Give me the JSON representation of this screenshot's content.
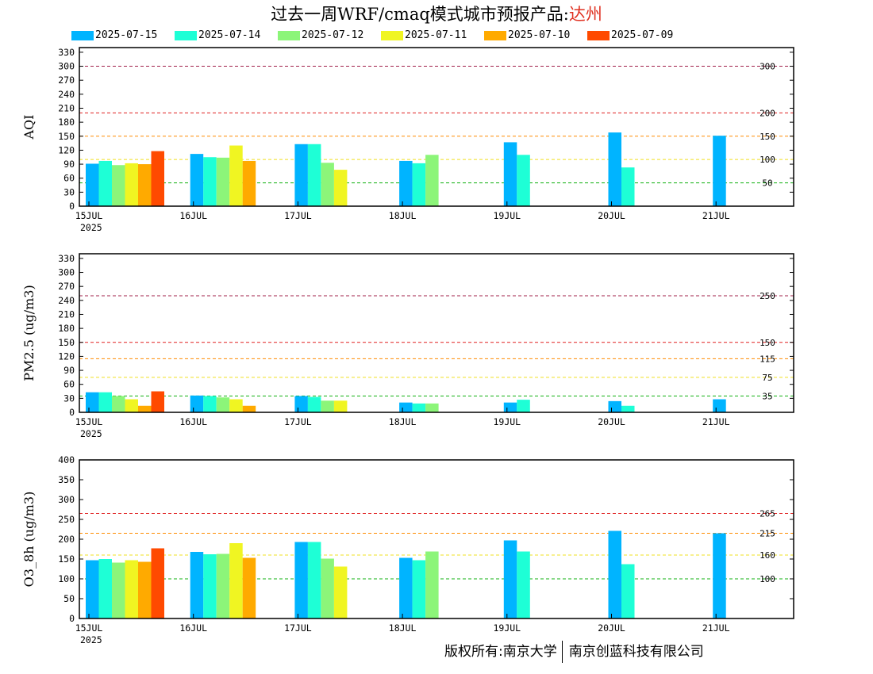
{
  "title": {
    "prefix": "过去一周WRF/cmaq模式城市预报产品:",
    "city": "达州"
  },
  "legend": [
    {
      "label": "2025-07-15",
      "color": "#00b4ff"
    },
    {
      "label": "2025-07-14",
      "color": "#1effd6"
    },
    {
      "label": "2025-07-12",
      "color": "#8cf579"
    },
    {
      "label": "2025-07-11",
      "color": "#f0f522"
    },
    {
      "label": "2025-07-10",
      "color": "#ffaa00"
    },
    {
      "label": "2025-07-09",
      "color": "#ff4a00"
    }
  ],
  "copyright": {
    "left": "版权所有:南京大学",
    "right": "南京创蓝科技有限公司"
  },
  "chart_data": [
    {
      "type": "bar",
      "ylabel": "AQI",
      "ylim": [
        0,
        340
      ],
      "yticks": [
        0,
        30,
        60,
        90,
        120,
        150,
        180,
        210,
        240,
        270,
        300,
        330
      ],
      "xticks": [
        "15JUL",
        "16JUL",
        "17JUL",
        "18JUL",
        "19JUL",
        "20JUL",
        "21JUL"
      ],
      "year": "2025",
      "thresholds": [
        {
          "value": 300,
          "label": "300",
          "color": "#a0204a"
        },
        {
          "value": 200,
          "label": "200",
          "color": "#e02020"
        },
        {
          "value": 150,
          "label": "150",
          "color": "#ff8c00"
        },
        {
          "value": 100,
          "label": "100",
          "color": "#f0e020"
        },
        {
          "value": 50,
          "label": "50",
          "color": "#10b010"
        }
      ],
      "days": [
        [
          91,
          97,
          88,
          92,
          90,
          118
        ],
        [
          112,
          105,
          104,
          130,
          97,
          null
        ],
        [
          133,
          133,
          93,
          78,
          null,
          null
        ],
        [
          97,
          92,
          110,
          null,
          null,
          null
        ],
        [
          137,
          110,
          null,
          null,
          null,
          null
        ],
        [
          158,
          83,
          null,
          null,
          null,
          null
        ],
        [
          151,
          null,
          null,
          null,
          null,
          null
        ]
      ]
    },
    {
      "type": "bar",
      "ylabel": "PM2.5 (ug/m3)",
      "ylim": [
        0,
        340
      ],
      "yticks": [
        0,
        30,
        60,
        90,
        120,
        150,
        180,
        210,
        240,
        270,
        300,
        330
      ],
      "xticks": [
        "15JUL",
        "16JUL",
        "17JUL",
        "18JUL",
        "19JUL",
        "20JUL",
        "21JUL"
      ],
      "year": "2025",
      "thresholds": [
        {
          "value": 250,
          "label": "250",
          "color": "#a0204a"
        },
        {
          "value": 150,
          "label": "150",
          "color": "#e02020"
        },
        {
          "value": 115,
          "label": "115",
          "color": "#ff8c00"
        },
        {
          "value": 75,
          "label": "75",
          "color": "#f0e020"
        },
        {
          "value": 35,
          "label": "35",
          "color": "#10b010"
        }
      ],
      "days": [
        [
          43,
          43,
          35,
          28,
          14,
          45
        ],
        [
          36,
          35,
          32,
          28,
          14,
          null
        ],
        [
          35,
          33,
          25,
          25,
          null,
          null
        ],
        [
          21,
          19,
          19,
          null,
          null,
          null
        ],
        [
          21,
          27,
          null,
          null,
          null,
          null
        ],
        [
          24,
          14,
          null,
          null,
          null,
          null
        ],
        [
          28,
          null,
          null,
          null,
          null,
          null
        ]
      ]
    },
    {
      "type": "bar",
      "ylabel": "O3_8h (ug/m3)",
      "ylim": [
        0,
        400
      ],
      "yticks": [
        0,
        50,
        100,
        150,
        200,
        250,
        300,
        350,
        400
      ],
      "xticks": [
        "15JUL",
        "16JUL",
        "17JUL",
        "18JUL",
        "19JUL",
        "20JUL",
        "21JUL"
      ],
      "year": "2025",
      "thresholds": [
        {
          "value": 265,
          "label": "265",
          "color": "#e02020"
        },
        {
          "value": 215,
          "label": "215",
          "color": "#ff8c00"
        },
        {
          "value": 160,
          "label": "160",
          "color": "#f0e020"
        },
        {
          "value": 100,
          "label": "100",
          "color": "#10b010"
        }
      ],
      "days": [
        [
          147,
          150,
          141,
          147,
          143,
          177
        ],
        [
          168,
          162,
          163,
          190,
          153,
          null
        ],
        [
          193,
          193,
          151,
          131,
          null,
          null
        ],
        [
          153,
          147,
          169,
          null,
          null,
          null
        ],
        [
          197,
          169,
          null,
          null,
          null,
          null
        ],
        [
          221,
          137,
          null,
          null,
          null,
          null
        ],
        [
          215,
          null,
          null,
          null,
          null,
          null
        ]
      ]
    }
  ]
}
